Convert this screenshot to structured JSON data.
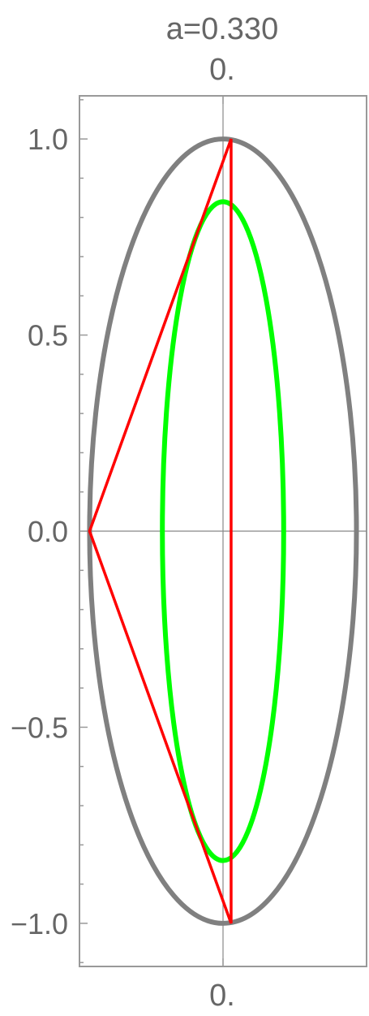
{
  "title": "a=0.330",
  "top_axis_label": "0.",
  "bottom_axis_label": "0.",
  "colors": {
    "outer_ellipse": "#808080",
    "inner_ellipse": "#00ff00",
    "triangle": "#ff0000",
    "frame": "#999999",
    "axes": "#888888",
    "text": "#666666"
  },
  "chart_data": {
    "type": "diagram",
    "parameter_a": 0.33,
    "xlim": [
      -0.355,
      0.355
    ],
    "ylim": [
      -1.11,
      1.11
    ],
    "y_ticks": [
      {
        "value": 1.0,
        "label": "1.0"
      },
      {
        "value": 0.5,
        "label": "0.5"
      },
      {
        "value": 0.0,
        "label": "0.0"
      },
      {
        "value": -0.5,
        "label": "−0.5"
      },
      {
        "value": -1.0,
        "label": "−1.0"
      }
    ],
    "x_ticks": [
      {
        "value": 0.0,
        "label": "0."
      }
    ],
    "outer_ellipse": {
      "cx": 0,
      "cy": 0,
      "rx": 0.33,
      "ry": 1.0
    },
    "inner_ellipse": {
      "cx": 0,
      "cy": 0,
      "rx": 0.15,
      "ry": 0.84
    },
    "triangle": [
      [
        -0.33,
        0.0
      ],
      [
        0.02,
        1.0
      ],
      [
        0.02,
        -1.0
      ]
    ]
  }
}
